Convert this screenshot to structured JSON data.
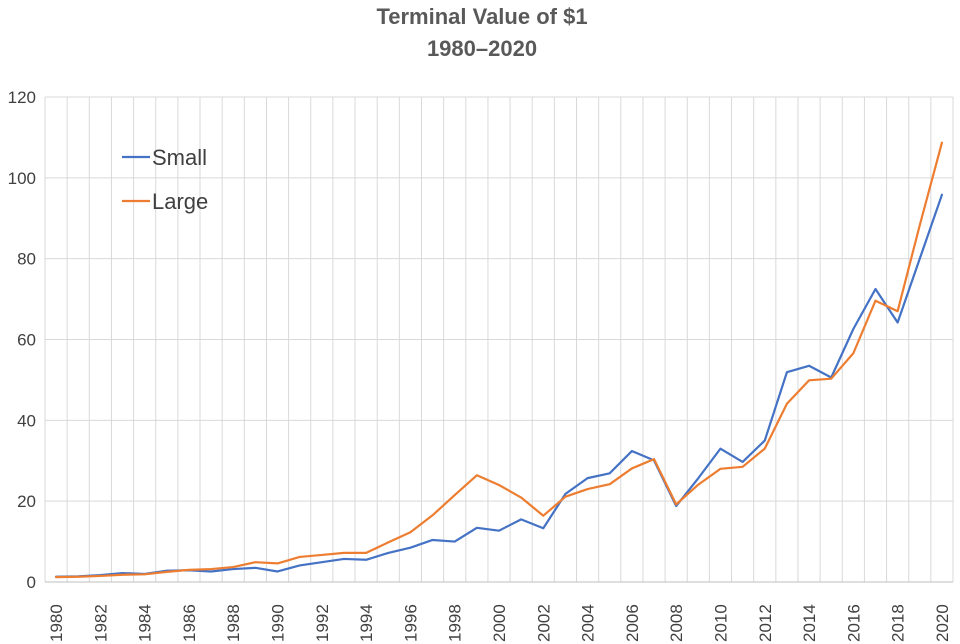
{
  "chart_data": {
    "type": "line",
    "title": [
      "Terminal Value of $1",
      "1980–2020"
    ],
    "xlabel": "",
    "ylabel": "",
    "x": [
      1980,
      1981,
      1982,
      1983,
      1984,
      1985,
      1986,
      1987,
      1988,
      1989,
      1990,
      1991,
      1992,
      1993,
      1994,
      1995,
      1996,
      1997,
      1998,
      1999,
      2000,
      2001,
      2002,
      2003,
      2004,
      2005,
      2006,
      2007,
      2008,
      2009,
      2010,
      2011,
      2012,
      2013,
      2014,
      2015,
      2016,
      2017,
      2018,
      2019,
      2020
    ],
    "x_tick_labels": [
      "1980",
      "1982",
      "1984",
      "1986",
      "1988",
      "1990",
      "1992",
      "1994",
      "1996",
      "1998",
      "2000",
      "2002",
      "2004",
      "2006",
      "2008",
      "2010",
      "2012",
      "2014",
      "2016",
      "2018",
      "2020"
    ],
    "ylim": [
      0,
      120
    ],
    "y_ticks": [
      0,
      20,
      40,
      60,
      80,
      100,
      120
    ],
    "grid": true,
    "legend_position": "top-left",
    "series": [
      {
        "name": "Small",
        "color": "#4472c4",
        "values": [
          1.3,
          1.4,
          1.7,
          2.2,
          2.0,
          2.8,
          2.9,
          2.6,
          3.2,
          3.5,
          2.6,
          4.1,
          4.9,
          5.7,
          5.5,
          7.2,
          8.5,
          10.4,
          10.0,
          13.4,
          12.7,
          15.5,
          13.3,
          21.8,
          25.7,
          26.9,
          32.4,
          30.1,
          18.8,
          25.7,
          33.0,
          29.7,
          35.0,
          51.9,
          53.5,
          50.6,
          62.6,
          72.5,
          64.2,
          80.0,
          95.8
        ]
      },
      {
        "name": "Large",
        "color": "#ed7d31",
        "values": [
          1.2,
          1.3,
          1.5,
          1.8,
          1.9,
          2.5,
          3.0,
          3.2,
          3.7,
          4.9,
          4.6,
          6.2,
          6.7,
          7.2,
          7.2,
          9.8,
          12.3,
          16.5,
          21.5,
          26.4,
          24.0,
          20.9,
          16.4,
          21.1,
          23.0,
          24.2,
          28.1,
          30.4,
          19.2,
          24.1,
          28.0,
          28.5,
          33.0,
          44.1,
          49.9,
          50.3,
          56.6,
          69.6,
          67.0,
          88.3,
          108.7
        ]
      }
    ]
  }
}
